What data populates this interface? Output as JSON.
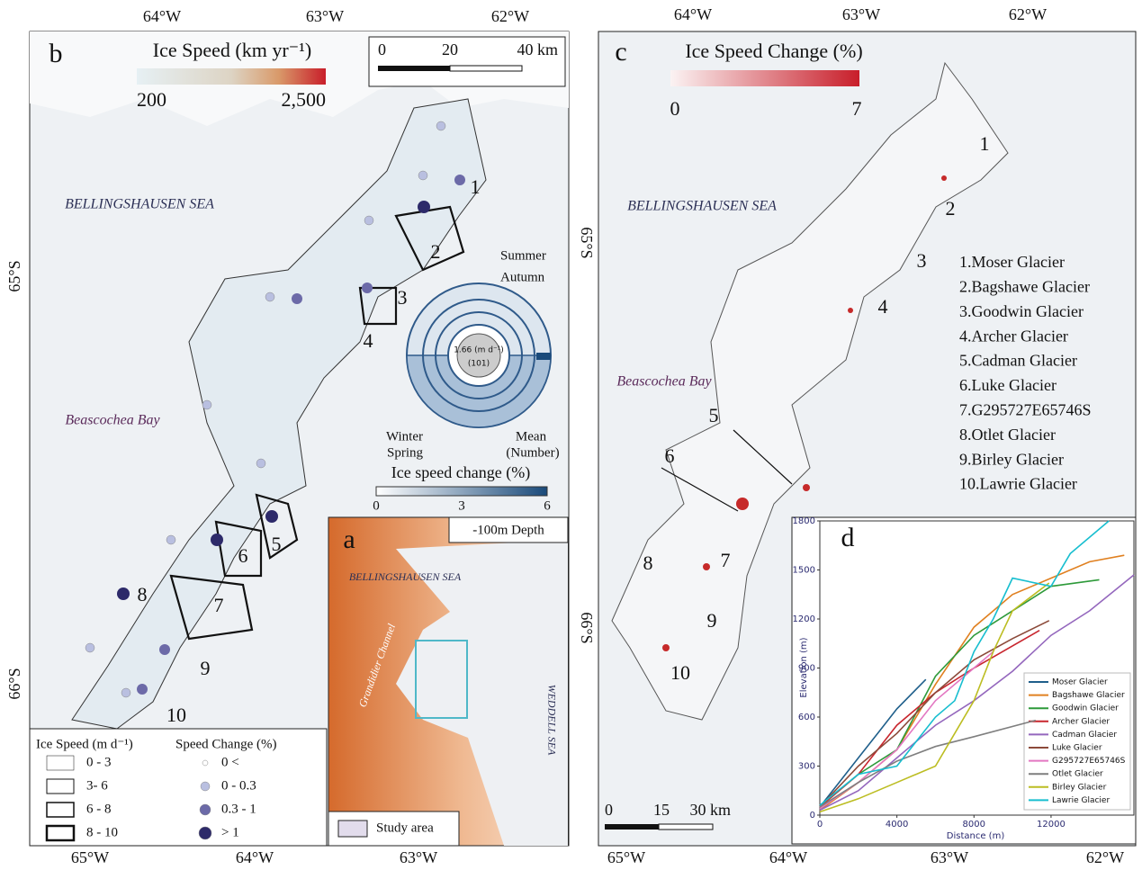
{
  "panel_b": {
    "label": "b",
    "colorbar_title": "Ice Speed (km yr⁻¹)",
    "colorbar_ticks": [
      "200",
      "2,500"
    ],
    "scale_labels": [
      "0",
      "20",
      "40 km"
    ],
    "lon_top": [
      "64°W",
      "63°W",
      "62°W"
    ],
    "lon_bottom": [
      "65°W",
      "64°W",
      "63°W"
    ],
    "lat_left": [
      "65°S",
      "66°S"
    ],
    "sea_label": "BELLINGSHAUSEN SEA",
    "bay_label": "Beascochea Bay",
    "glacier_numbers": [
      "1",
      "2",
      "3",
      "4",
      "5",
      "6",
      "7",
      "8",
      "9",
      "10"
    ],
    "season_chart": {
      "seasons": [
        "Summer",
        "Autumn",
        "Winter",
        "Spring"
      ],
      "center_value": "1.66 (m d⁻¹)",
      "center_count": "(101)",
      "mean_label": "Mean",
      "number_label": "(Number)",
      "colorbar_title": "Ice speed change (%)",
      "colorbar_ticks": [
        "0",
        "3",
        "6"
      ]
    },
    "legend": {
      "speed_title": "Ice Speed (m d⁻¹)",
      "speed_classes": [
        "0 - 3",
        "3- 6",
        "6 - 8",
        "8 - 10"
      ],
      "change_title": "Speed Change (%)",
      "change_classes": [
        "0 <",
        "0 - 0.3",
        "0.3 - 1",
        "> 1"
      ]
    }
  },
  "panel_a": {
    "label": "a",
    "depth_label": "-100m Depth",
    "sea_label": "BELLINGSHAUSEN SEA",
    "channel_label": "Grandidier Channel",
    "weddell_label": "WEDDELL SEA",
    "legend_label": "Study area"
  },
  "panel_c": {
    "label": "c",
    "colorbar_title": "Ice Speed Change (%)",
    "colorbar_ticks": [
      "0",
      "7"
    ],
    "lon_top": [
      "64°W",
      "63°W",
      "62°W"
    ],
    "lon_bottom": [
      "65°W",
      "64°W",
      "63°W",
      "62°W"
    ],
    "lat_left": [
      "65°S",
      "66°S"
    ],
    "sea_label": "BELLINGSHAUSEN SEA",
    "bay_label": "Beascochea Bay",
    "glacier_numbers": [
      "1",
      "2",
      "3",
      "4",
      "5",
      "6",
      "7",
      "8",
      "9",
      "10"
    ],
    "glacier_list": [
      "1.Moser Glacier",
      "2.Bagshawe Glacier",
      "3.Goodwin Glacier",
      "4.Archer Glacier",
      "5.Cadman Glacier",
      "6.Luke Glacier",
      "7.G295727E65746S",
      "8.Otlet Glacier",
      "9.Birley Glacier",
      "10.Lawrie Glacier"
    ],
    "scale_labels": [
      "0",
      "15",
      "30 km"
    ]
  },
  "chart_data": {
    "type": "line",
    "panel_label": "d",
    "y_label": "Elevation (m)",
    "x_label": "Distance (m)",
    "xlim": [
      0,
      16300
    ],
    "ylim": [
      0,
      1800
    ],
    "xticks": [
      0,
      4000,
      8000,
      12000
    ],
    "yticks": [
      0,
      300,
      600,
      900,
      1200,
      1500,
      1800
    ],
    "series": [
      {
        "name": "Moser Glacier",
        "color": "#1f5f8b",
        "x": [
          0,
          1000,
          2000,
          3000,
          4000,
          5500
        ],
        "values": [
          50,
          200,
          350,
          500,
          650,
          830
        ]
      },
      {
        "name": "Bagshawe Glacier",
        "color": "#e08020",
        "x": [
          0,
          2000,
          4000,
          6000,
          8000,
          10000,
          12000,
          14000,
          15800
        ],
        "values": [
          30,
          200,
          400,
          800,
          1150,
          1350,
          1450,
          1550,
          1590
        ]
      },
      {
        "name": "Goodwin Glacier",
        "color": "#2e9a3a",
        "x": [
          0,
          2000,
          4000,
          6000,
          8000,
          10000,
          12000,
          14500
        ],
        "values": [
          50,
          250,
          400,
          850,
          1100,
          1250,
          1400,
          1440
        ]
      },
      {
        "name": "Archer Glacier",
        "color": "#c8262e",
        "x": [
          0,
          2000,
          4000,
          6000,
          8000,
          11400
        ],
        "values": [
          50,
          250,
          550,
          750,
          900,
          1130
        ]
      },
      {
        "name": "Cadman Glacier",
        "color": "#9467bd",
        "x": [
          0,
          2000,
          4000,
          6000,
          8000,
          10000,
          12000,
          14000,
          16300
        ],
        "values": [
          30,
          150,
          350,
          550,
          700,
          880,
          1100,
          1250,
          1470
        ]
      },
      {
        "name": "Luke Glacier",
        "color": "#8c4a3a",
        "x": [
          0,
          2000,
          4000,
          6000,
          8000,
          10000,
          11900
        ],
        "values": [
          50,
          300,
          500,
          750,
          950,
          1080,
          1190
        ]
      },
      {
        "name": "G295727E65746S",
        "color": "#e377c2",
        "x": [
          0,
          2000,
          4000,
          6000,
          8000,
          9000
        ],
        "values": [
          40,
          200,
          400,
          700,
          900,
          1000
        ]
      },
      {
        "name": "Otlet Glacier",
        "color": "#7f7f7f",
        "x": [
          0,
          2000,
          4000,
          6000,
          8000,
          11200
        ],
        "values": [
          50,
          200,
          330,
          420,
          480,
          580
        ]
      },
      {
        "name": "Birley Glacier",
        "color": "#bcbd22",
        "x": [
          0,
          2000,
          4000,
          6000,
          7000,
          8000,
          9000,
          10000,
          11900
        ],
        "values": [
          20,
          100,
          200,
          300,
          500,
          700,
          1000,
          1250,
          1420
        ]
      },
      {
        "name": "Lawrie Glacier",
        "color": "#17becf",
        "x": [
          0,
          2000,
          4000,
          6000,
          7000,
          8000,
          9000,
          10000,
          12000,
          13000,
          15000
        ],
        "values": [
          60,
          250,
          300,
          600,
          700,
          1000,
          1200,
          1450,
          1400,
          1600,
          1800
        ]
      }
    ]
  }
}
